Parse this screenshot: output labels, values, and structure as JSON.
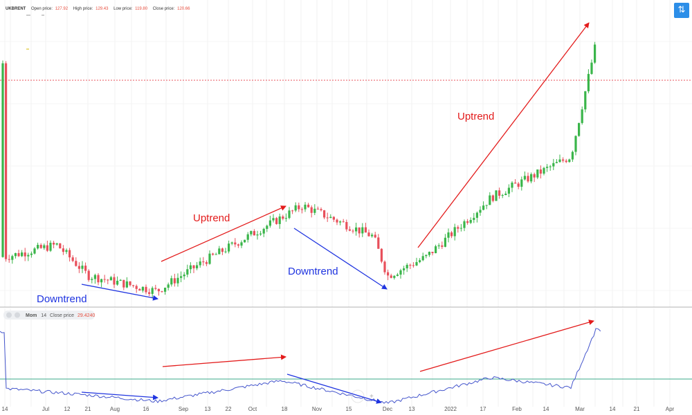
{
  "header": {
    "symbol": "UKBRENT",
    "open_label": "Open price:",
    "open_value": "127.92",
    "high_label": "High price:",
    "high_value": "129.43",
    "low_label": "Low price:",
    "low_value": "119.80",
    "close_label": "Close price:",
    "close_value": "120.66"
  },
  "toolbar": {
    "icon": "swap-arrows-icon",
    "accent": "#2c8ee8"
  },
  "indicator": {
    "name": "Mom",
    "period": "14",
    "source": "Close price",
    "value": "29.4240",
    "line_color": "#4455cc",
    "zero_line_color": "#3aa88a"
  },
  "annotations": {
    "uptrend_1": "Uptrend",
    "uptrend_2": "Uptrend",
    "downtrend_1": "Downtrend",
    "downtrend_2": "Downtrend",
    "up_color": "#e31b1b",
    "down_color": "#1f34e0"
  },
  "chart_data": {
    "type": "candlestick",
    "symbol": "UKBRENT",
    "x_tick_labels": [
      "14",
      "Jul",
      "12",
      "21",
      "Aug",
      "16",
      "Sep",
      "13",
      "22",
      "Oct",
      "18",
      "Nov",
      "15",
      "Dec",
      "13",
      "2022",
      "17",
      "Feb",
      "14",
      "Mar",
      "14",
      "21",
      "Apr"
    ],
    "colors": {
      "up": "#3ab54a",
      "down": "#e8505b"
    },
    "current_price_line": "dotted red",
    "grid": true,
    "price_key_points": [
      {
        "x": "2021-06-14",
        "close": 73.5
      },
      {
        "x": "2021-07-06",
        "close": 76.5
      },
      {
        "x": "2021-07-20",
        "close": 69.0
      },
      {
        "x": "2021-08-20",
        "close": 65.2
      },
      {
        "x": "2021-09-10",
        "close": 72.5
      },
      {
        "x": "2021-10-25",
        "close": 86.0
      },
      {
        "x": "2021-11-25",
        "close": 78.5
      },
      {
        "x": "2021-12-01",
        "close": 68.9
      },
      {
        "x": "2021-12-20",
        "close": 73.5
      },
      {
        "x": "2022-01-20",
        "close": 88.0
      },
      {
        "x": "2022-02-25",
        "close": 98.0
      },
      {
        "x": "2022-03-07",
        "close": 127.0
      },
      {
        "x": "2022-03-08",
        "close": 120.66
      }
    ],
    "momentum": {
      "name": "Mom",
      "period": 14,
      "source": "Close price",
      "last_value": 29.424,
      "key_points": [
        {
          "x": "2021-06-14",
          "value": 0.5
        },
        {
          "x": "2021-07-22",
          "value": -3.0
        },
        {
          "x": "2021-08-20",
          "value": -6.0
        },
        {
          "x": "2021-10-15",
          "value": 4.5
        },
        {
          "x": "2021-12-01",
          "value": -7.0
        },
        {
          "x": "2022-01-20",
          "value": 6.0
        },
        {
          "x": "2022-02-25",
          "value": 1.0
        },
        {
          "x": "2022-03-07",
          "value": 32.0
        },
        {
          "x": "2022-03-08",
          "value": 29.424
        }
      ]
    }
  }
}
